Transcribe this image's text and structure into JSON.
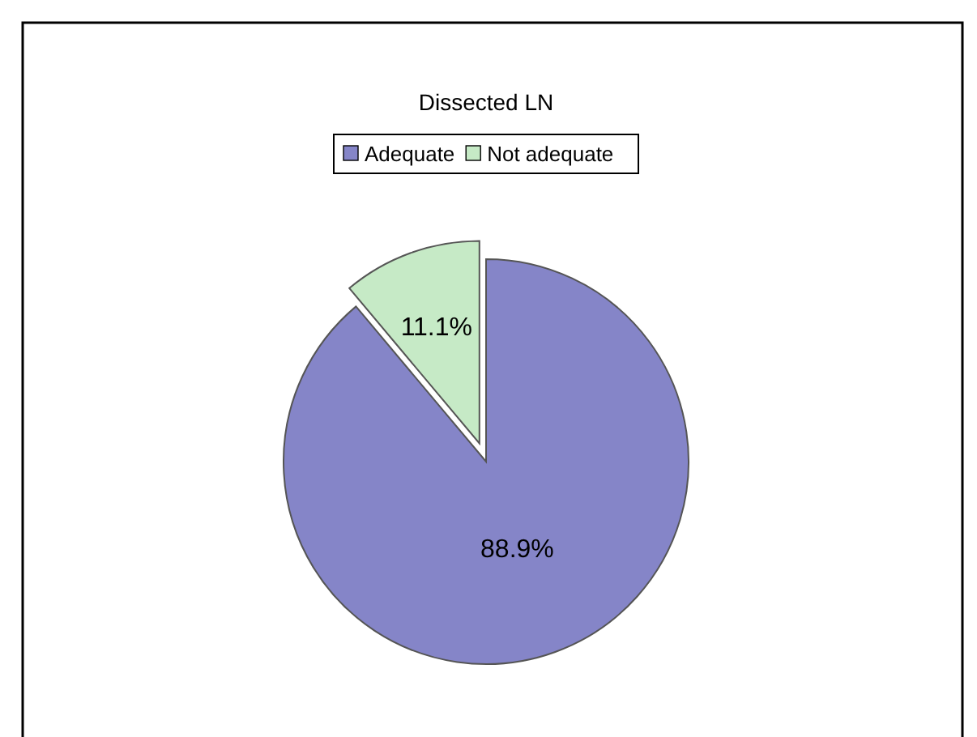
{
  "chart_data": {
    "type": "pie",
    "title": "Dissected LN",
    "categories": [
      "Adequate",
      "Not adequate"
    ],
    "values": [
      88.9,
      11.1
    ],
    "colors": [
      "#8585c8",
      "#c6eac6"
    ],
    "value_labels": [
      "88.9%",
      "11.1%"
    ],
    "legend": "top"
  }
}
